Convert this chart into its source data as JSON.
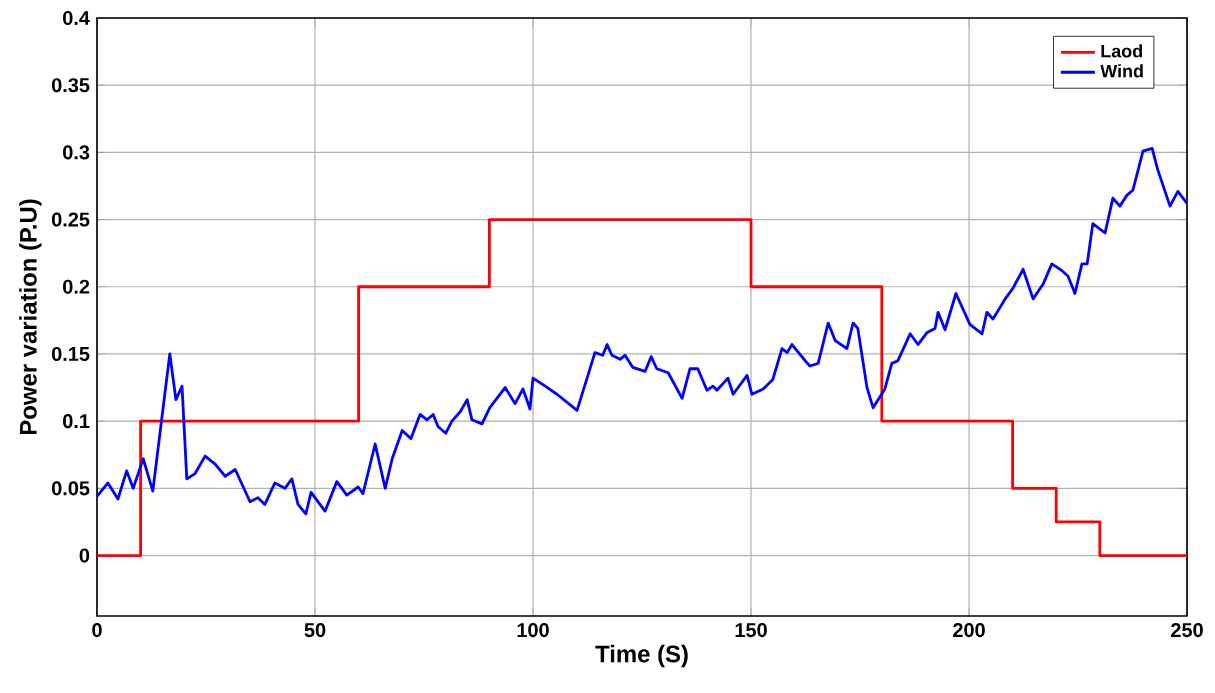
{
  "chart_data": {
    "type": "line",
    "xlabel": "Time (S)",
    "ylabel": "Power variation (P.U)",
    "xlim": [
      0,
      250
    ],
    "ylim": [
      -0.045,
      0.4
    ],
    "xticks": [
      0,
      50,
      100,
      150,
      200,
      250
    ],
    "yticks": [
      0,
      0.05,
      0.1,
      0.15,
      0.2,
      0.25,
      0.3,
      0.35,
      0.4
    ],
    "grid": true,
    "legend": "top right",
    "series": [
      {
        "name": "Laod",
        "type": "step",
        "color": "#ff0000",
        "x": [
          0,
          10,
          60,
          90,
          150,
          180,
          210,
          220,
          230,
          250
        ],
        "values": [
          0,
          0.1,
          0.2,
          0.25,
          0.2,
          0.1,
          0.05,
          0.025,
          0,
          0
        ]
      },
      {
        "name": "Wind",
        "type": "line",
        "color": "#0000ff",
        "x": [
          0,
          2.5,
          4.8,
          6.8,
          8.3,
          10.6,
          12.8,
          16.7,
          18.1,
          19.5,
          20.6,
          22.5,
          24.8,
          27.1,
          29.4,
          31.7,
          35.1,
          36.9,
          38.5,
          40.8,
          43.1,
          44.7,
          46.1,
          47.9,
          49.1,
          52.3,
          55,
          57.3,
          59.9,
          61,
          63.8,
          66.1,
          67.7,
          70,
          72,
          74.1,
          75.7,
          77.1,
          78.2,
          80,
          81.4,
          83.3,
          84.9,
          86,
          88.3,
          90.1,
          93.6,
          95.9,
          97.7,
          99.3,
          100,
          102.8,
          105.5,
          110.1,
          112.4,
          114.2,
          116,
          117,
          118.1,
          120,
          121.1,
          122.9,
          125.7,
          127.1,
          128.4,
          131,
          134.2,
          136,
          137.8,
          139.9,
          141.3,
          142.2,
          144.7,
          145.9,
          149.1,
          150.2,
          152.8,
          155,
          157.1,
          158.3,
          159.4,
          161.9,
          163.5,
          165.4,
          167.7,
          169.3,
          172,
          173.4,
          174.5,
          176.6,
          178,
          180.7,
          182.3,
          183.7,
          186.5,
          188.3,
          190.4,
          192.2,
          192.9,
          194.5,
          197,
          200.2,
          203,
          204.1,
          205.5,
          208.3,
          210.1,
          212.4,
          214.7,
          217,
          219,
          220.9,
          222.7,
          224.3,
          225.9,
          227.1,
          228.4,
          231.2,
          233,
          234.6,
          236.2,
          237.6,
          239.9,
          242,
          243.3,
          246.1,
          247.9,
          250
        ],
        "values": [
          0.044,
          0.054,
          0.042,
          0.063,
          0.05,
          0.072,
          0.048,
          0.15,
          0.116,
          0.126,
          0.057,
          0.061,
          0.074,
          0.068,
          0.059,
          0.064,
          0.04,
          0.043,
          0.038,
          0.054,
          0.05,
          0.057,
          0.038,
          0.031,
          0.047,
          0.033,
          0.055,
          0.045,
          0.051,
          0.046,
          0.083,
          0.05,
          0.072,
          0.093,
          0.087,
          0.105,
          0.101,
          0.105,
          0.096,
          0.091,
          0.1,
          0.107,
          0.116,
          0.101,
          0.098,
          0.11,
          0.125,
          0.113,
          0.124,
          0.109,
          0.132,
          0.126,
          0.12,
          0.108,
          0.132,
          0.151,
          0.149,
          0.157,
          0.149,
          0.146,
          0.149,
          0.14,
          0.137,
          0.148,
          0.139,
          0.136,
          0.117,
          0.139,
          0.139,
          0.123,
          0.126,
          0.123,
          0.132,
          0.12,
          0.134,
          0.12,
          0.124,
          0.131,
          0.154,
          0.151,
          0.157,
          0.147,
          0.141,
          0.143,
          0.173,
          0.16,
          0.154,
          0.173,
          0.169,
          0.125,
          0.11,
          0.124,
          0.143,
          0.145,
          0.165,
          0.157,
          0.166,
          0.169,
          0.181,
          0.168,
          0.195,
          0.172,
          0.165,
          0.181,
          0.176,
          0.191,
          0.199,
          0.213,
          0.191,
          0.202,
          0.217,
          0.213,
          0.208,
          0.195,
          0.217,
          0.217,
          0.247,
          0.24,
          0.266,
          0.26,
          0.268,
          0.272,
          0.301,
          0.303,
          0.287,
          0.26,
          0.271,
          0.262
        ]
      }
    ]
  }
}
